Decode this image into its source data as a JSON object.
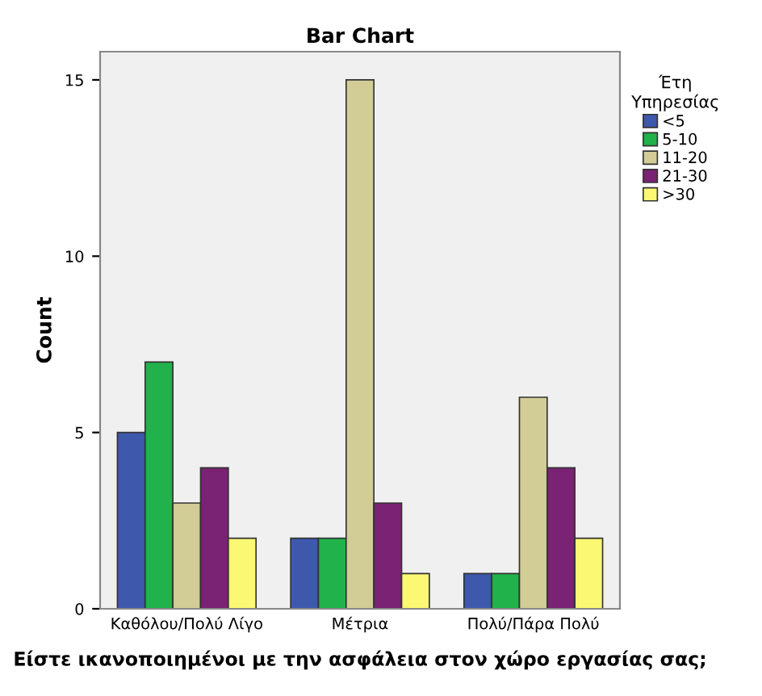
{
  "chart_data": {
    "type": "bar",
    "title": "Bar Chart",
    "xlabel": "Είστε ικανοποιημένοι με την ασφάλεια στον χώρο εργασίας σας;",
    "ylabel": "Count",
    "legend_title": "Έτη\nΥπηρεσίας",
    "categories": [
      "Καθόλου/Πολύ Λίγο",
      "Μέτρια",
      "Πολύ/Πάρα Πολύ"
    ],
    "series": [
      {
        "name": "<5",
        "color": "#3e58ac",
        "values": [
          5,
          2,
          1
        ]
      },
      {
        "name": "5-10",
        "color": "#21b24b",
        "values": [
          7,
          2,
          1
        ]
      },
      {
        "name": "11-20",
        "color": "#d2cc96",
        "values": [
          3,
          15,
          6
        ]
      },
      {
        "name": "21-30",
        "color": "#7a2273",
        "values": [
          4,
          3,
          4
        ]
      },
      {
        "name": ">30",
        "color": "#fbf873",
        "values": [
          2,
          1,
          2
        ]
      }
    ],
    "ylim": [
      0,
      15.8
    ],
    "yticks": [
      0,
      5,
      10,
      15
    ],
    "grid": false,
    "legend": "right"
  }
}
